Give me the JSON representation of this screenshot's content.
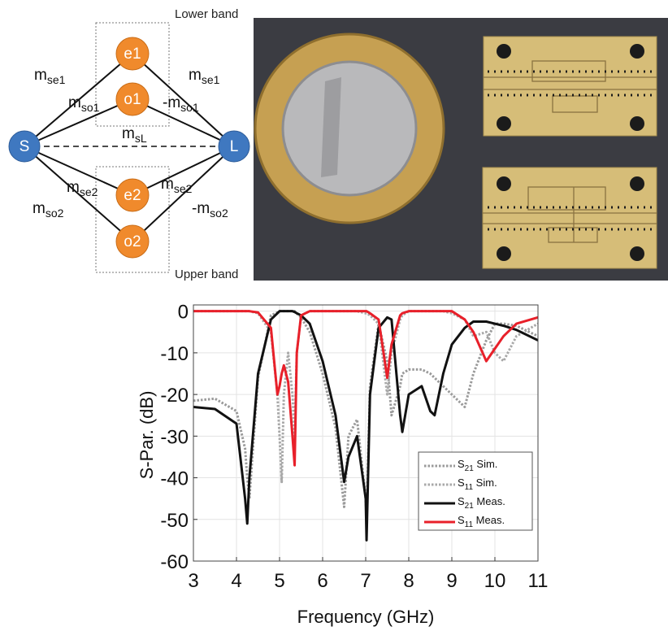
{
  "diagram": {
    "bands": [
      "Lower band",
      "Upper band"
    ],
    "nodes": [
      "S",
      "L",
      "e1",
      "o1",
      "e2",
      "o2"
    ],
    "couplings": [
      {
        "text": "m",
        "sub": "se1"
      },
      {
        "text": "m",
        "sub": "so1"
      },
      {
        "text": "-m",
        "sub": "so1"
      },
      {
        "text": "m",
        "sub": "se1"
      },
      {
        "text": "m",
        "sub": "sL"
      },
      {
        "text": "m",
        "sub": "se2"
      },
      {
        "text": "m",
        "sub": "se2"
      },
      {
        "text": "m",
        "sub": "so2"
      },
      {
        "text": "-m",
        "sub": "so2"
      }
    ]
  },
  "chart_data": {
    "type": "line",
    "x_label": "Frequency (GHz)",
    "y_label": "S-Par. (dB)",
    "x": [
      3,
      3.5,
      4,
      4.2,
      4.25,
      4.3,
      4.5,
      4.8,
      4.95,
      5,
      5.05,
      5.1,
      5.2,
      5.3,
      5.35,
      5.4,
      5.5,
      5.7,
      6,
      6.3,
      6.5,
      6.6,
      6.8,
      7,
      7.02,
      7.1,
      7.3,
      7.5,
      7.6,
      7.8,
      7.85,
      8,
      8.3,
      8.5,
      8.6,
      8.8,
      9,
      9.3,
      9.5,
      9.8,
      10,
      10.2,
      10.5,
      11
    ],
    "series": [
      {
        "name": "S21 Sim.",
        "color": "#9a9a9a",
        "style": "dotted",
        "values": [
          -21.5,
          -21,
          -24,
          -33,
          -40,
          -45,
          -16,
          -1,
          -0.3,
          0,
          0,
          0,
          0,
          0,
          0,
          -0.5,
          -1.5,
          -5,
          -15,
          -28,
          -47,
          -30,
          -26,
          -45,
          -50,
          -18,
          -3,
          -12,
          -25,
          -18,
          -15,
          -14,
          -14,
          -15,
          -16,
          -18,
          -20,
          -23,
          -15,
          -7,
          -3,
          -3,
          -3.5,
          -6
        ]
      },
      {
        "name": "S11 Sim.",
        "color": "#a8a8a8",
        "style": "dotted",
        "values": [
          0,
          0,
          0,
          0,
          0,
          0,
          -0.5,
          -5,
          -20,
          -30,
          -41,
          -20,
          -10,
          -20,
          -30,
          -10,
          -1,
          0,
          0,
          0,
          0,
          0,
          0,
          -0.5,
          -0.5,
          -1,
          -3,
          -20,
          -10,
          -2,
          -1,
          0,
          0,
          0,
          0,
          0,
          -0.5,
          -2,
          -6,
          -5,
          -10,
          -12,
          -6,
          -3
        ]
      },
      {
        "name": "S21 Meas.",
        "color": "#111111",
        "style": "solid",
        "values": [
          -23,
          -23.5,
          -27,
          -45,
          -51,
          -40,
          -15,
          -2,
          -0.5,
          0,
          0,
          0,
          0,
          0,
          -0.2,
          -0.5,
          -1,
          -3,
          -12,
          -25,
          -41,
          -35,
          -30,
          -45,
          -55,
          -20,
          -4,
          -1.5,
          -2,
          -25,
          -29,
          -20,
          -18,
          -24,
          -25,
          -15,
          -8,
          -4,
          -2.5,
          -2.5,
          -3,
          -3.5,
          -4.5,
          -7
        ]
      },
      {
        "name": "S11 Meas.",
        "color": "#e8202a",
        "style": "solid",
        "values": [
          0,
          0,
          0,
          0,
          0,
          0,
          -0.3,
          -4,
          -20,
          -18,
          -15,
          -13,
          -17,
          -30,
          -37,
          -10,
          -1,
          0,
          0,
          0,
          0,
          0,
          0,
          0,
          0,
          -0.5,
          -2,
          -16,
          -8,
          -1,
          -0.5,
          0,
          0,
          0,
          0,
          0,
          0,
          -2,
          -5,
          -12,
          -9,
          -6,
          -3,
          -1.5
        ]
      }
    ],
    "xlim": [
      3,
      11
    ],
    "ylim": [
      -60,
      1.5
    ],
    "xticks": [
      3,
      4,
      5,
      6,
      7,
      8,
      9,
      10,
      11
    ],
    "yticks": [
      0,
      -10,
      -20,
      -30,
      -40,
      -50,
      -60
    ],
    "grid": true,
    "legend": "lower right"
  }
}
